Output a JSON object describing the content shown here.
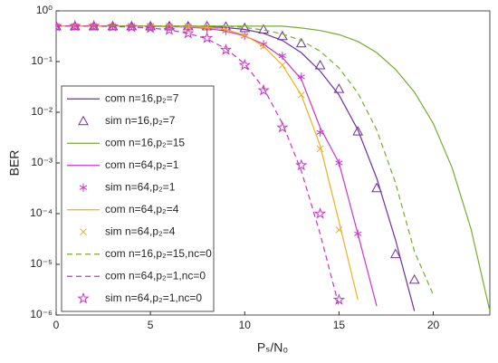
{
  "chart_data": {
    "type": "line",
    "x_label": "Pₛ/N₀",
    "y_label": "BER",
    "log_y": true,
    "xlim": [
      0,
      23
    ],
    "xticks": [
      0,
      5,
      10,
      15,
      20
    ],
    "ylim": [
      1e-06,
      1
    ],
    "yticks": [
      {
        "value": 1e-06,
        "label": "10⁻⁶"
      },
      {
        "value": 1e-05,
        "label": "10⁻⁵"
      },
      {
        "value": 0.0001,
        "label": "10⁻⁴"
      },
      {
        "value": 0.001,
        "label": "10⁻³"
      },
      {
        "value": 0.01,
        "label": "10⁻²"
      },
      {
        "value": 0.1,
        "label": "10⁻¹"
      },
      {
        "value": 1,
        "label": "10⁰"
      }
    ],
    "legend": "lower left",
    "series": [
      {
        "name": "com n=16,p₂=7",
        "color": "#7030a0",
        "style": "solid",
        "x": [
          0,
          1,
          2,
          3,
          4,
          5,
          6,
          7,
          8,
          9,
          10,
          11,
          12,
          13,
          14,
          15,
          16,
          17,
          18,
          19
        ],
        "values": [
          0.5,
          0.5,
          0.5,
          0.5,
          0.5,
          0.5,
          0.5,
          0.5,
          0.49,
          0.47,
          0.43,
          0.36,
          0.26,
          0.15,
          0.065,
          0.022,
          0.0045,
          0.0005,
          3e-05,
          1.2e-06
        ]
      },
      {
        "name": "sim n=16,p₂=7",
        "color": "#7030a0",
        "marker": "triangle",
        "x": [
          0,
          1,
          2,
          3,
          4,
          5,
          6,
          7,
          8,
          9,
          10,
          11,
          12,
          13,
          14,
          15,
          16,
          17,
          18,
          19
        ],
        "values": [
          0.5,
          0.5,
          0.5,
          0.5,
          0.5,
          0.5,
          0.5,
          0.5,
          0.5,
          0.49,
          0.46,
          0.43,
          0.32,
          0.23,
          0.085,
          0.029,
          0.0042,
          0.00032,
          1.6e-05,
          5e-06
        ]
      },
      {
        "name": "com n=16,p₂=15",
        "color": "#77ac30",
        "style": "solid",
        "x": [
          0,
          1,
          2,
          3,
          4,
          5,
          6,
          7,
          8,
          9,
          10,
          11,
          12,
          13,
          14,
          15,
          16,
          17,
          18,
          19,
          20,
          21,
          22,
          23
        ],
        "values": [
          0.5,
          0.5,
          0.5,
          0.5,
          0.5,
          0.5,
          0.5,
          0.5,
          0.5,
          0.5,
          0.5,
          0.5,
          0.5,
          0.46,
          0.41,
          0.34,
          0.25,
          0.15,
          0.07,
          0.025,
          0.006,
          0.0008,
          5e-05,
          1.2e-06
        ]
      },
      {
        "name": "com n=64,p₂=1",
        "color": "#cc33cc",
        "style": "solid",
        "x": [
          0,
          1,
          2,
          3,
          4,
          5,
          6,
          7,
          8,
          9,
          10,
          11,
          12,
          13,
          14,
          15,
          16,
          17
        ],
        "values": [
          0.5,
          0.5,
          0.5,
          0.5,
          0.5,
          0.5,
          0.49,
          0.48,
          0.45,
          0.4,
          0.32,
          0.22,
          0.12,
          0.045,
          0.005,
          0.001,
          4e-05,
          1.5e-06
        ]
      },
      {
        "name": "sim n=64,p₂=1",
        "color": "#cc33cc",
        "marker": "asterisk",
        "x": [
          0,
          1,
          2,
          3,
          4,
          5,
          6,
          7,
          8,
          9,
          10,
          11,
          12,
          13,
          14,
          15,
          16
        ],
        "values": [
          0.5,
          0.5,
          0.5,
          0.5,
          0.5,
          0.5,
          0.49,
          0.48,
          0.45,
          0.4,
          0.32,
          0.22,
          0.13,
          0.05,
          0.004,
          0.001,
          4e-05
        ]
      },
      {
        "name": "com n=64,p₂=4",
        "color": "#edb120",
        "style": "solid",
        "x": [
          0,
          1,
          2,
          3,
          4,
          5,
          6,
          7,
          8,
          9,
          10,
          11,
          12,
          13,
          14,
          15,
          16
        ],
        "values": [
          0.5,
          0.5,
          0.5,
          0.5,
          0.5,
          0.5,
          0.5,
          0.49,
          0.47,
          0.43,
          0.33,
          0.2,
          0.085,
          0.022,
          0.0022,
          7e-05,
          2e-06
        ]
      },
      {
        "name": "sim n=64,p₂=4",
        "color": "#edb120",
        "marker": "x",
        "x": [
          0,
          1,
          2,
          3,
          4,
          5,
          6,
          7,
          8,
          9,
          10,
          11,
          12,
          13,
          14,
          15
        ],
        "values": [
          0.5,
          0.5,
          0.5,
          0.5,
          0.5,
          0.5,
          0.5,
          0.49,
          0.47,
          0.43,
          0.33,
          0.2,
          0.085,
          0.022,
          0.0019,
          4.8e-05
        ]
      },
      {
        "name": "com n=16,p₂=15,nc=0",
        "color": "#77ac30",
        "style": "dashed",
        "x": [
          0,
          1,
          2,
          3,
          4,
          5,
          6,
          7,
          8,
          9,
          10,
          11,
          12,
          13,
          14,
          15,
          16,
          17,
          18,
          19,
          20
        ],
        "values": [
          0.5,
          0.5,
          0.5,
          0.5,
          0.5,
          0.5,
          0.5,
          0.5,
          0.5,
          0.5,
          0.47,
          0.42,
          0.35,
          0.26,
          0.16,
          0.075,
          0.024,
          0.0045,
          0.0004,
          1.8e-05,
          2.5e-06
        ]
      },
      {
        "name": "com n=64,p₂=1,nc=0",
        "color": "#cc33cc",
        "style": "dashed",
        "x": [
          0,
          1,
          2,
          3,
          4,
          5,
          6,
          7,
          8,
          9,
          10,
          11,
          12,
          13,
          14,
          15
        ],
        "values": [
          0.5,
          0.5,
          0.5,
          0.49,
          0.48,
          0.46,
          0.42,
          0.36,
          0.28,
          0.18,
          0.09,
          0.03,
          0.006,
          0.0007,
          4e-05,
          1.5e-06
        ]
      },
      {
        "name": "sim n=64,p₂=1,nc=0",
        "color": "#cc33cc",
        "marker": "star",
        "x": [
          0,
          1,
          2,
          3,
          4,
          5,
          6,
          7,
          8,
          9,
          10,
          11,
          12,
          13,
          14,
          15
        ],
        "values": [
          0.5,
          0.5,
          0.5,
          0.49,
          0.48,
          0.46,
          0.42,
          0.36,
          0.29,
          0.17,
          0.085,
          0.027,
          0.005,
          0.0009,
          0.0001,
          2e-06
        ]
      }
    ]
  }
}
